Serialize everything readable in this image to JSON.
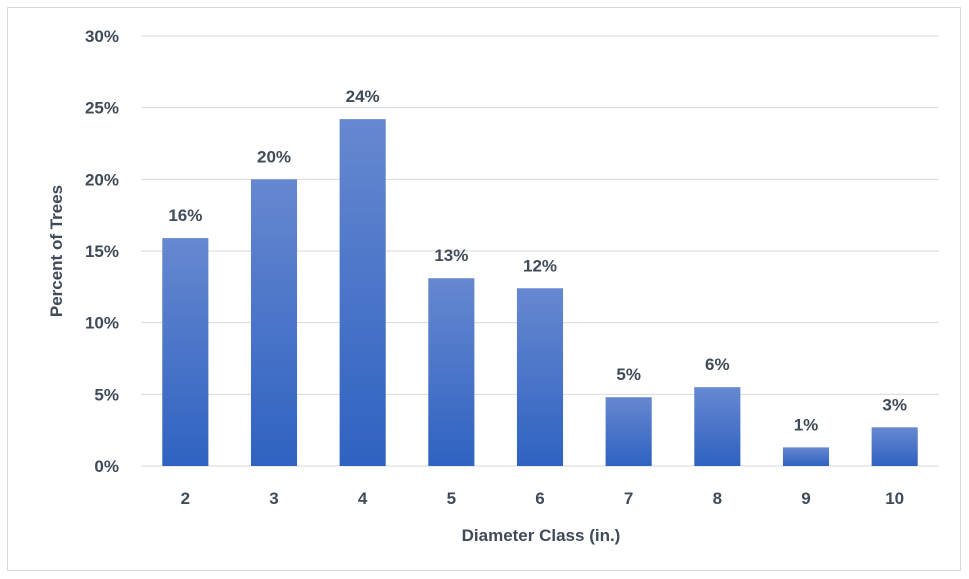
{
  "chart_data": {
    "type": "bar",
    "title": "",
    "xlabel": "Diameter Class (in.)",
    "ylabel": "Percent of Trees",
    "categories": [
      "2",
      "3",
      "4",
      "5",
      "6",
      "7",
      "8",
      "9",
      "10"
    ],
    "values": [
      15.9,
      20.0,
      24.2,
      13.1,
      12.4,
      4.8,
      5.5,
      1.3,
      2.7
    ],
    "data_labels": [
      "16%",
      "20%",
      "24%",
      "13%",
      "12%",
      "5%",
      "6%",
      "1%",
      "3%"
    ],
    "ylim": [
      0,
      30
    ],
    "yticks": [
      0,
      5,
      10,
      15,
      20,
      25,
      30
    ],
    "ytick_labels": [
      "0%",
      "5%",
      "10%",
      "15%",
      "20%",
      "25%",
      "30%"
    ],
    "grid": true,
    "legend": "none",
    "bar_color_top": "#6688d0",
    "bar_color_bottom": "#2f62c1",
    "gridline_color": "#d9d9d9",
    "text_color": "#404b5a"
  }
}
